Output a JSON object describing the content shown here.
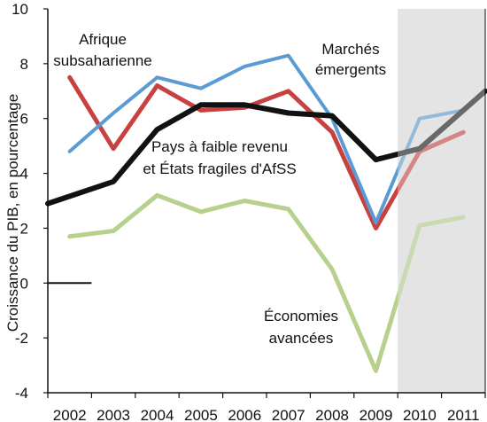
{
  "chart_data": {
    "type": "line",
    "title": "",
    "xlabel": "",
    "ylabel": "Croissance du PIB, en pourcentage",
    "ylim": [
      -4,
      10
    ],
    "y_ticks": [
      "-4",
      "-2",
      "0",
      "2",
      "4",
      "6",
      "8",
      "10"
    ],
    "x_ticks": [
      "2002",
      "2003",
      "2004",
      "2005",
      "2006",
      "2007",
      "2008",
      "2009",
      "2010",
      "2011"
    ],
    "shaded_region": {
      "from": 2009.5,
      "to": 2011.5,
      "color": "#e4e4e4"
    },
    "zero_line": {
      "from": 2001.5,
      "to": 2002.5,
      "y": 0
    },
    "colors": {
      "ssa": "#c8403f",
      "emerging": "#5b9bd5",
      "low_income": "#111111",
      "advanced": "#b7d18c",
      "shade": "#e4e4e4",
      "axis": "#111111"
    },
    "series": [
      {
        "key": "ssa",
        "name": "Afrique subsaharienne",
        "x": [
          2002,
          2003,
          2004,
          2005,
          2006,
          2007,
          2008,
          2009,
          2010,
          2011
        ],
        "values": [
          7.5,
          4.9,
          7.2,
          6.3,
          6.4,
          7.0,
          5.5,
          2.0,
          4.8,
          5.5
        ]
      },
      {
        "key": "emerging",
        "name": "Marchés émergents",
        "x": [
          2002,
          2003,
          2004,
          2005,
          2006,
          2007,
          2008,
          2009,
          2010,
          2011
        ],
        "values": [
          4.8,
          6.2,
          7.5,
          7.1,
          7.9,
          8.3,
          6.0,
          2.2,
          6.0,
          6.3
        ]
      },
      {
        "key": "low_income",
        "name": "Pays à faible revenu et États fragiles d'AfSS",
        "x": [
          2001.5,
          2003,
          2004,
          2005,
          2006,
          2007,
          2008,
          2009,
          2010,
          2011.5
        ],
        "values": [
          2.9,
          3.7,
          5.6,
          6.5,
          6.5,
          6.2,
          6.1,
          4.5,
          4.9,
          7.0
        ]
      },
      {
        "key": "advanced",
        "name": "Économies avancées",
        "x": [
          2002,
          2003,
          2004,
          2005,
          2006,
          2007,
          2008,
          2009,
          2010,
          2011
        ],
        "values": [
          1.7,
          1.9,
          3.2,
          2.6,
          3.0,
          2.7,
          0.5,
          -3.2,
          2.1,
          2.4
        ]
      }
    ],
    "annotations": {
      "ssa_line1": "Afrique",
      "ssa_line2": "subsaharienne",
      "emerging_line1": "Marchés",
      "emerging_line2": "émergents",
      "low_income_line1": "Pays à faible revenu",
      "low_income_line2": "et États fragiles d'AfSS",
      "advanced_line1": "Économies",
      "advanced_line2": "avancées"
    }
  }
}
